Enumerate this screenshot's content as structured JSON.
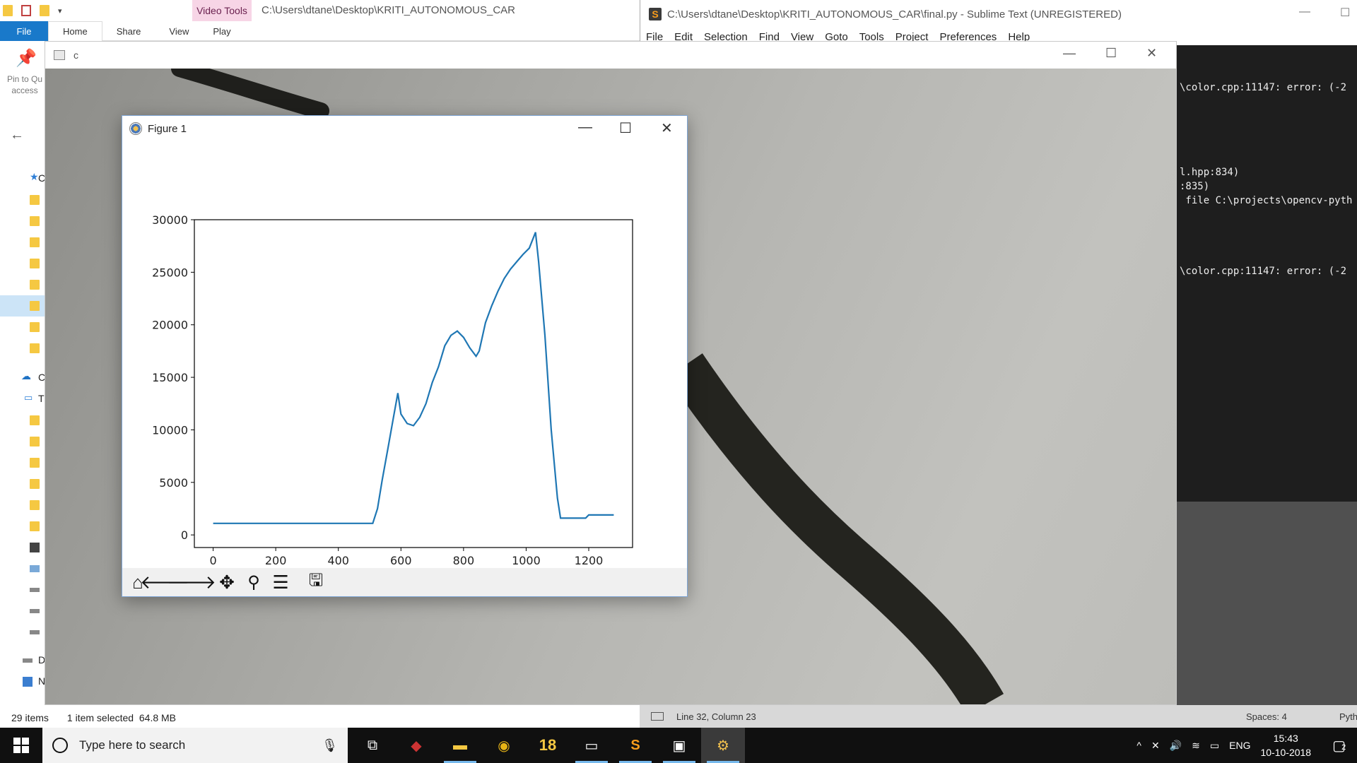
{
  "explorer": {
    "context_tab": "Video Tools",
    "path_title": "C:\\Users\\dtane\\Desktop\\KRITI_AUTONOMOUS_CAR",
    "ribbon_tabs": [
      "File",
      "Home",
      "Share",
      "View"
    ],
    "play_tab": "Play",
    "pin_label_1": "Pin to Qu",
    "pin_label_2": "access",
    "nav_letters": [
      "C",
      "C",
      "T",
      "D",
      "N"
    ],
    "status_items": "29 items",
    "status_selected": "1 item selected",
    "status_size": "64.8 MB"
  },
  "sublime": {
    "title": "C:\\Users\\dtane\\Desktop\\KRITI_AUTONOMOUS_CAR\\final.py - Sublime Text (UNREGISTERED)",
    "menu": [
      "File",
      "Edit",
      "Selection",
      "Find",
      "View",
      "Goto",
      "Tools",
      "Project",
      "Preferences",
      "Help"
    ],
    "console_lines": [
      "\\color.cpp:11147: error: (-2",
      "l.hpp:834)",
      ":835)",
      " file C:\\projects\\opencv-pyth",
      "\\color.cpp:11147: error: (-2"
    ],
    "status_position": "Line 32, Column 23",
    "status_spaces": "Spaces: 4",
    "status_syntax": "Pyth"
  },
  "camera": {
    "title": "c"
  },
  "figure": {
    "title": "Figure 1",
    "toolbar_icons": [
      "home-icon",
      "back-icon",
      "forward-icon",
      "pan-icon",
      "zoom-icon",
      "configure-icon",
      "save-icon"
    ]
  },
  "chart_data": {
    "type": "line",
    "title": "",
    "xlabel": "",
    "ylabel": "",
    "xlim": [
      -60,
      1340
    ],
    "ylim": [
      -1200,
      30000
    ],
    "x_ticks": [
      0,
      200,
      400,
      600,
      800,
      1000,
      1200
    ],
    "y_ticks": [
      0,
      5000,
      10000,
      15000,
      20000,
      25000,
      30000
    ],
    "grid": false,
    "line_color": "#1f77b4",
    "series": [
      {
        "x": [
          0,
          100,
          200,
          300,
          400,
          460,
          510,
          525,
          540,
          560,
          575,
          590,
          600,
          620,
          640,
          660,
          680,
          700,
          720,
          740,
          760,
          780,
          800,
          820,
          840,
          850,
          870,
          890,
          910,
          930,
          950,
          970,
          990,
          1010,
          1030,
          1040,
          1060,
          1080,
          1100,
          1110,
          1150,
          1190,
          1200,
          1250,
          1280
        ],
        "y": [
          1100,
          1100,
          1100,
          1100,
          1100,
          1100,
          1100,
          2500,
          5200,
          8500,
          11000,
          13500,
          11500,
          10600,
          10400,
          11200,
          12500,
          14500,
          16000,
          18000,
          19000,
          19400,
          18800,
          17800,
          17000,
          17500,
          20200,
          21800,
          23200,
          24400,
          25300,
          26000,
          26700,
          27300,
          28800,
          26000,
          19000,
          10000,
          3500,
          1600,
          1600,
          1600,
          1900,
          1900,
          1900
        ]
      }
    ]
  },
  "taskbar": {
    "search_placeholder": "Type here to search",
    "app_badge": "18",
    "language": "ENG",
    "time": "15:43",
    "date": "10-10-2018",
    "notification_count": "2"
  }
}
